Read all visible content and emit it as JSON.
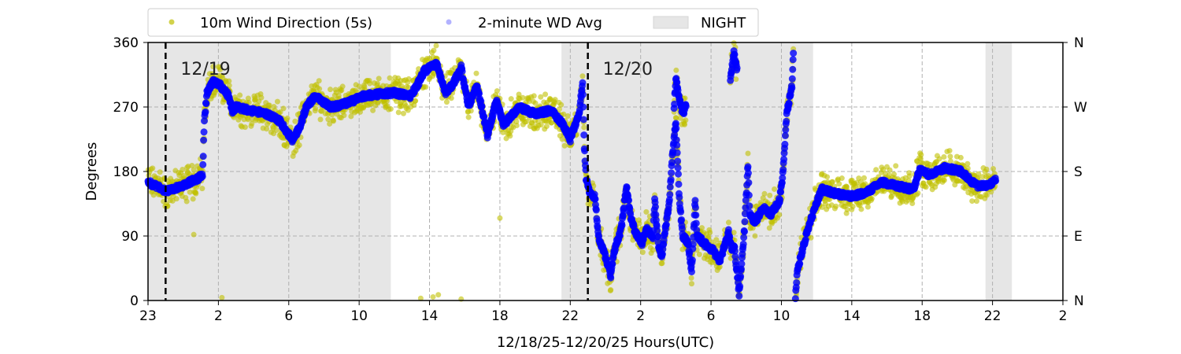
{
  "chart_data": {
    "type": "scatter",
    "xlabel": "12/18/25-12/20/25  Hours(UTC)",
    "ylabel": "Degrees",
    "xlim": [
      0,
      52
    ],
    "ylim": [
      0,
      360
    ],
    "x_ticks": [
      0,
      4,
      8,
      12,
      16,
      20,
      24,
      28,
      32,
      36,
      40,
      44,
      48,
      52
    ],
    "x_tick_labels": [
      "23",
      "2",
      "6",
      "10",
      "14",
      "18",
      "22",
      "2",
      "6",
      "10",
      "14",
      "18",
      "22",
      "2"
    ],
    "y_ticks": [
      0,
      90,
      180,
      270,
      360
    ],
    "y_tick_labels": [
      "0",
      "90",
      "180",
      "270",
      "360"
    ],
    "y2_tick_labels": [
      "N",
      "E",
      "S",
      "W",
      "N"
    ],
    "grid": true,
    "legend_position": "top-center-outside",
    "legend": [
      "10m Wind Direction (5s)",
      "2-minute WD Avg",
      "NIGHT"
    ],
    "night_periods": [
      [
        0,
        13.8
      ],
      [
        23.5,
        37.8
      ],
      [
        47.6,
        49.1
      ]
    ],
    "date_markers": [
      {
        "x": 1.0,
        "label": "12/19"
      },
      {
        "x": 25.0,
        "label": "12/20"
      }
    ],
    "colors": {
      "wd5s": "#bfbf00",
      "avg": "#0000ff",
      "night": "#e6e6e6"
    },
    "wd5s_spread_deg": 28,
    "avg_segments": [
      [
        [
          0,
          165
        ],
        [
          0.5,
          160
        ],
        [
          1.0,
          152
        ],
        [
          1.9,
          160
        ],
        [
          2.8,
          170
        ],
        [
          3.1,
          175
        ],
        [
          3.2,
          250
        ],
        [
          3.35,
          290
        ],
        [
          3.7,
          305
        ],
        [
          4.1,
          300
        ],
        [
          4.6,
          285
        ],
        [
          4.8,
          265
        ],
        [
          5.0,
          270
        ],
        [
          5.9,
          265
        ],
        [
          6.8,
          260
        ],
        [
          7.5,
          250
        ],
        [
          7.9,
          235
        ],
        [
          8.2,
          225
        ],
        [
          8.6,
          240
        ],
        [
          9.0,
          270
        ],
        [
          9.5,
          285
        ],
        [
          9.8,
          280
        ],
        [
          10.4,
          270
        ],
        [
          11.3,
          275
        ],
        [
          12.2,
          285
        ],
        [
          13.1,
          288
        ],
        [
          14.0,
          290
        ],
        [
          14.9,
          285
        ],
        [
          15.3,
          300
        ],
        [
          15.7,
          320
        ],
        [
          16.4,
          330
        ],
        [
          16.9,
          290
        ],
        [
          17.3,
          300
        ],
        [
          17.8,
          325
        ],
        [
          18.2,
          270
        ],
        [
          18.7,
          300
        ],
        [
          19.3,
          230
        ],
        [
          19.8,
          280
        ],
        [
          20.2,
          245
        ],
        [
          21.1,
          270
        ],
        [
          22.0,
          260
        ],
        [
          22.9,
          265
        ],
        [
          23.6,
          245
        ],
        [
          24.0,
          225
        ],
        [
          24.5,
          260
        ],
        [
          24.7,
          305
        ],
        [
          24.8,
          215
        ],
        [
          24.9,
          170
        ],
        [
          25.1,
          150
        ],
        [
          25.4,
          145
        ],
        [
          25.6,
          90
        ],
        [
          25.8,
          75
        ],
        [
          26.0,
          60
        ],
        [
          26.3,
          35
        ],
        [
          26.5,
          70
        ],
        [
          26.9,
          100
        ],
        [
          27.2,
          160
        ],
        [
          27.4,
          120
        ],
        [
          27.7,
          95
        ],
        [
          28.1,
          80
        ],
        [
          28.3,
          100
        ],
        [
          28.7,
          90
        ],
        [
          28.8,
          140
        ],
        [
          29.0,
          80
        ],
        [
          29.2,
          60
        ],
        [
          29.4,
          100
        ],
        [
          29.6,
          130
        ],
        [
          29.8,
          200
        ],
        [
          30.0,
          250
        ],
        [
          30.2,
          140
        ],
        [
          30.4,
          90
        ],
        [
          30.7,
          80
        ],
        [
          30.9,
          40
        ],
        [
          31.1,
          140
        ],
        [
          31.2,
          90
        ],
        [
          31.6,
          80
        ],
        [
          32.1,
          70
        ],
        [
          32.5,
          55
        ],
        [
          33.0,
          95
        ],
        [
          33.2,
          70
        ],
        [
          33.3,
          80
        ],
        [
          33.6,
          10
        ]
      ],
      [
        [
          29.9,
          270
        ],
        [
          30.0,
          310
        ],
        [
          30.2,
          280
        ],
        [
          30.4,
          260
        ],
        [
          30.6,
          275
        ]
      ],
      [
        [
          33.1,
          310
        ],
        [
          33.3,
          345
        ],
        [
          33.5,
          320
        ]
      ],
      [
        [
          33.6,
          10
        ],
        [
          33.9,
          100
        ],
        [
          34.1,
          190
        ],
        [
          34.2,
          120
        ],
        [
          34.5,
          110
        ],
        [
          35.0,
          130
        ],
        [
          35.4,
          120
        ],
        [
          35.9,
          140
        ],
        [
          36.1,
          180
        ],
        [
          36.3,
          260
        ],
        [
          36.6,
          300
        ],
        [
          36.7,
          355
        ]
      ],
      [
        [
          36.8,
          5
        ],
        [
          36.9,
          40
        ],
        [
          37.1,
          60
        ],
        [
          37.4,
          90
        ],
        [
          37.9,
          130
        ],
        [
          38.3,
          155
        ],
        [
          39.0,
          150
        ],
        [
          39.9,
          145
        ],
        [
          40.8,
          150
        ],
        [
          41.7,
          165
        ],
        [
          42.6,
          160
        ],
        [
          43.5,
          155
        ],
        [
          43.9,
          185
        ],
        [
          44.4,
          175
        ],
        [
          45.3,
          185
        ],
        [
          46.2,
          180
        ],
        [
          47.1,
          160
        ],
        [
          47.7,
          160
        ],
        [
          48.2,
          168
        ]
      ]
    ],
    "wd5s_outliers": [
      [
        15.5,
        3
      ],
      [
        16.2,
        5
      ],
      [
        16.5,
        8
      ],
      [
        17.8,
        2
      ],
      [
        4.2,
        4
      ],
      [
        2.6,
        92
      ],
      [
        20.0,
        115
      ]
    ]
  }
}
